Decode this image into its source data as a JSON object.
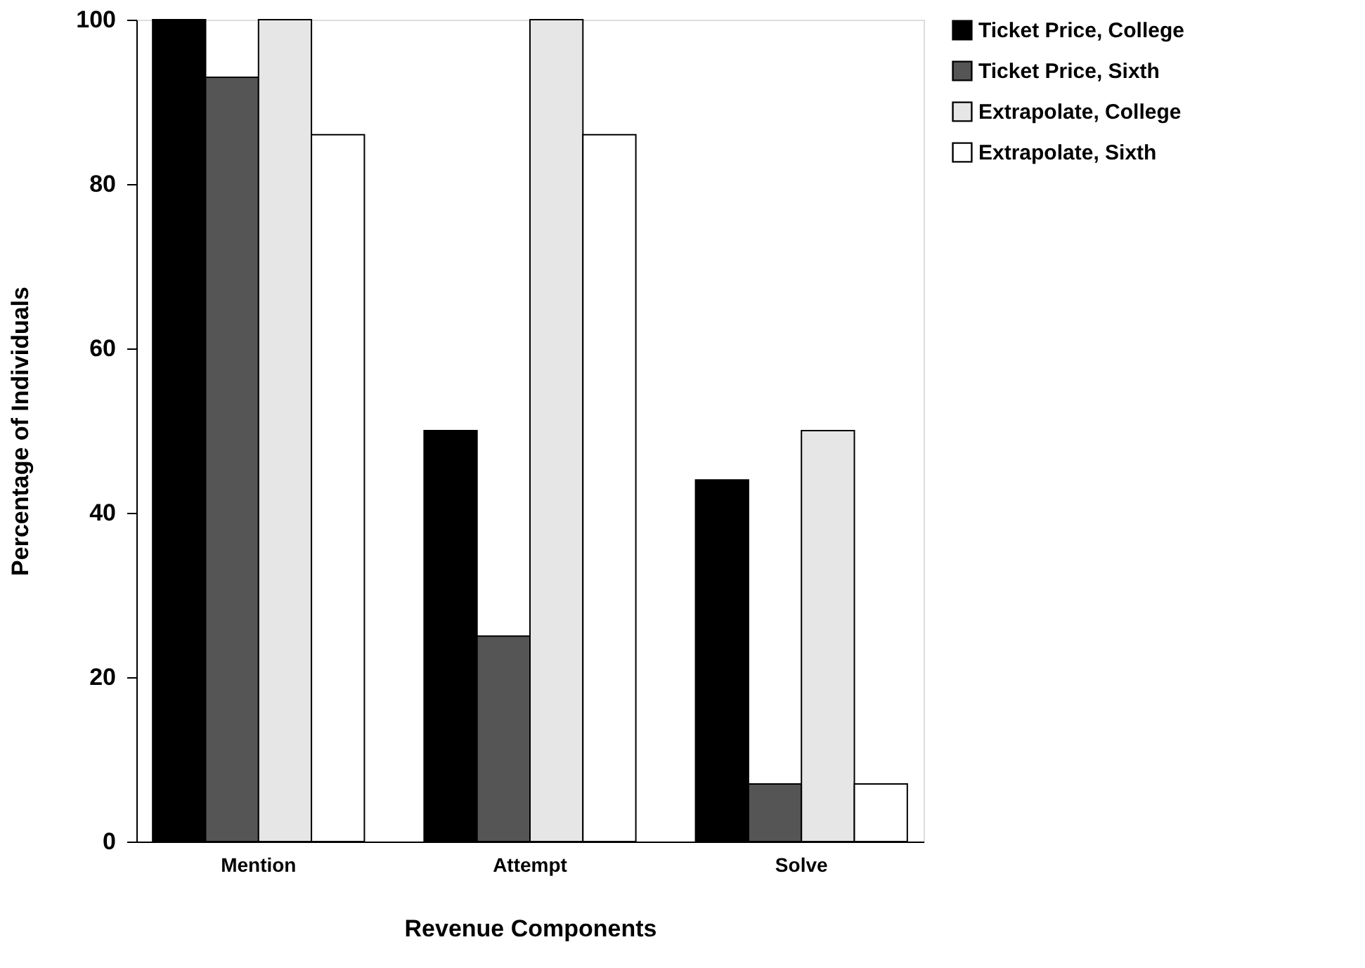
{
  "chart_data": {
    "type": "bar",
    "xlabel": "Revenue Components",
    "ylabel": "Percentage of Individuals",
    "categories": [
      "Mention",
      "Attempt",
      "Solve"
    ],
    "series": [
      {
        "name": "Ticket Price, College",
        "color": "#000000",
        "values": [
          100,
          50,
          44
        ]
      },
      {
        "name": "Ticket Price, Sixth",
        "color": "#555555",
        "values": [
          93,
          25,
          7
        ]
      },
      {
        "name": "Extrapolate, College",
        "color": "#e6e6e6",
        "values": [
          100,
          100,
          50
        ]
      },
      {
        "name": "Extrapolate, Sixth",
        "color": "#ffffff",
        "values": [
          86,
          86,
          7
        ]
      }
    ],
    "ylim": [
      0,
      100
    ],
    "yticks": [
      0,
      20,
      40,
      60,
      80,
      100
    ],
    "grid": false,
    "legend": "top right"
  }
}
